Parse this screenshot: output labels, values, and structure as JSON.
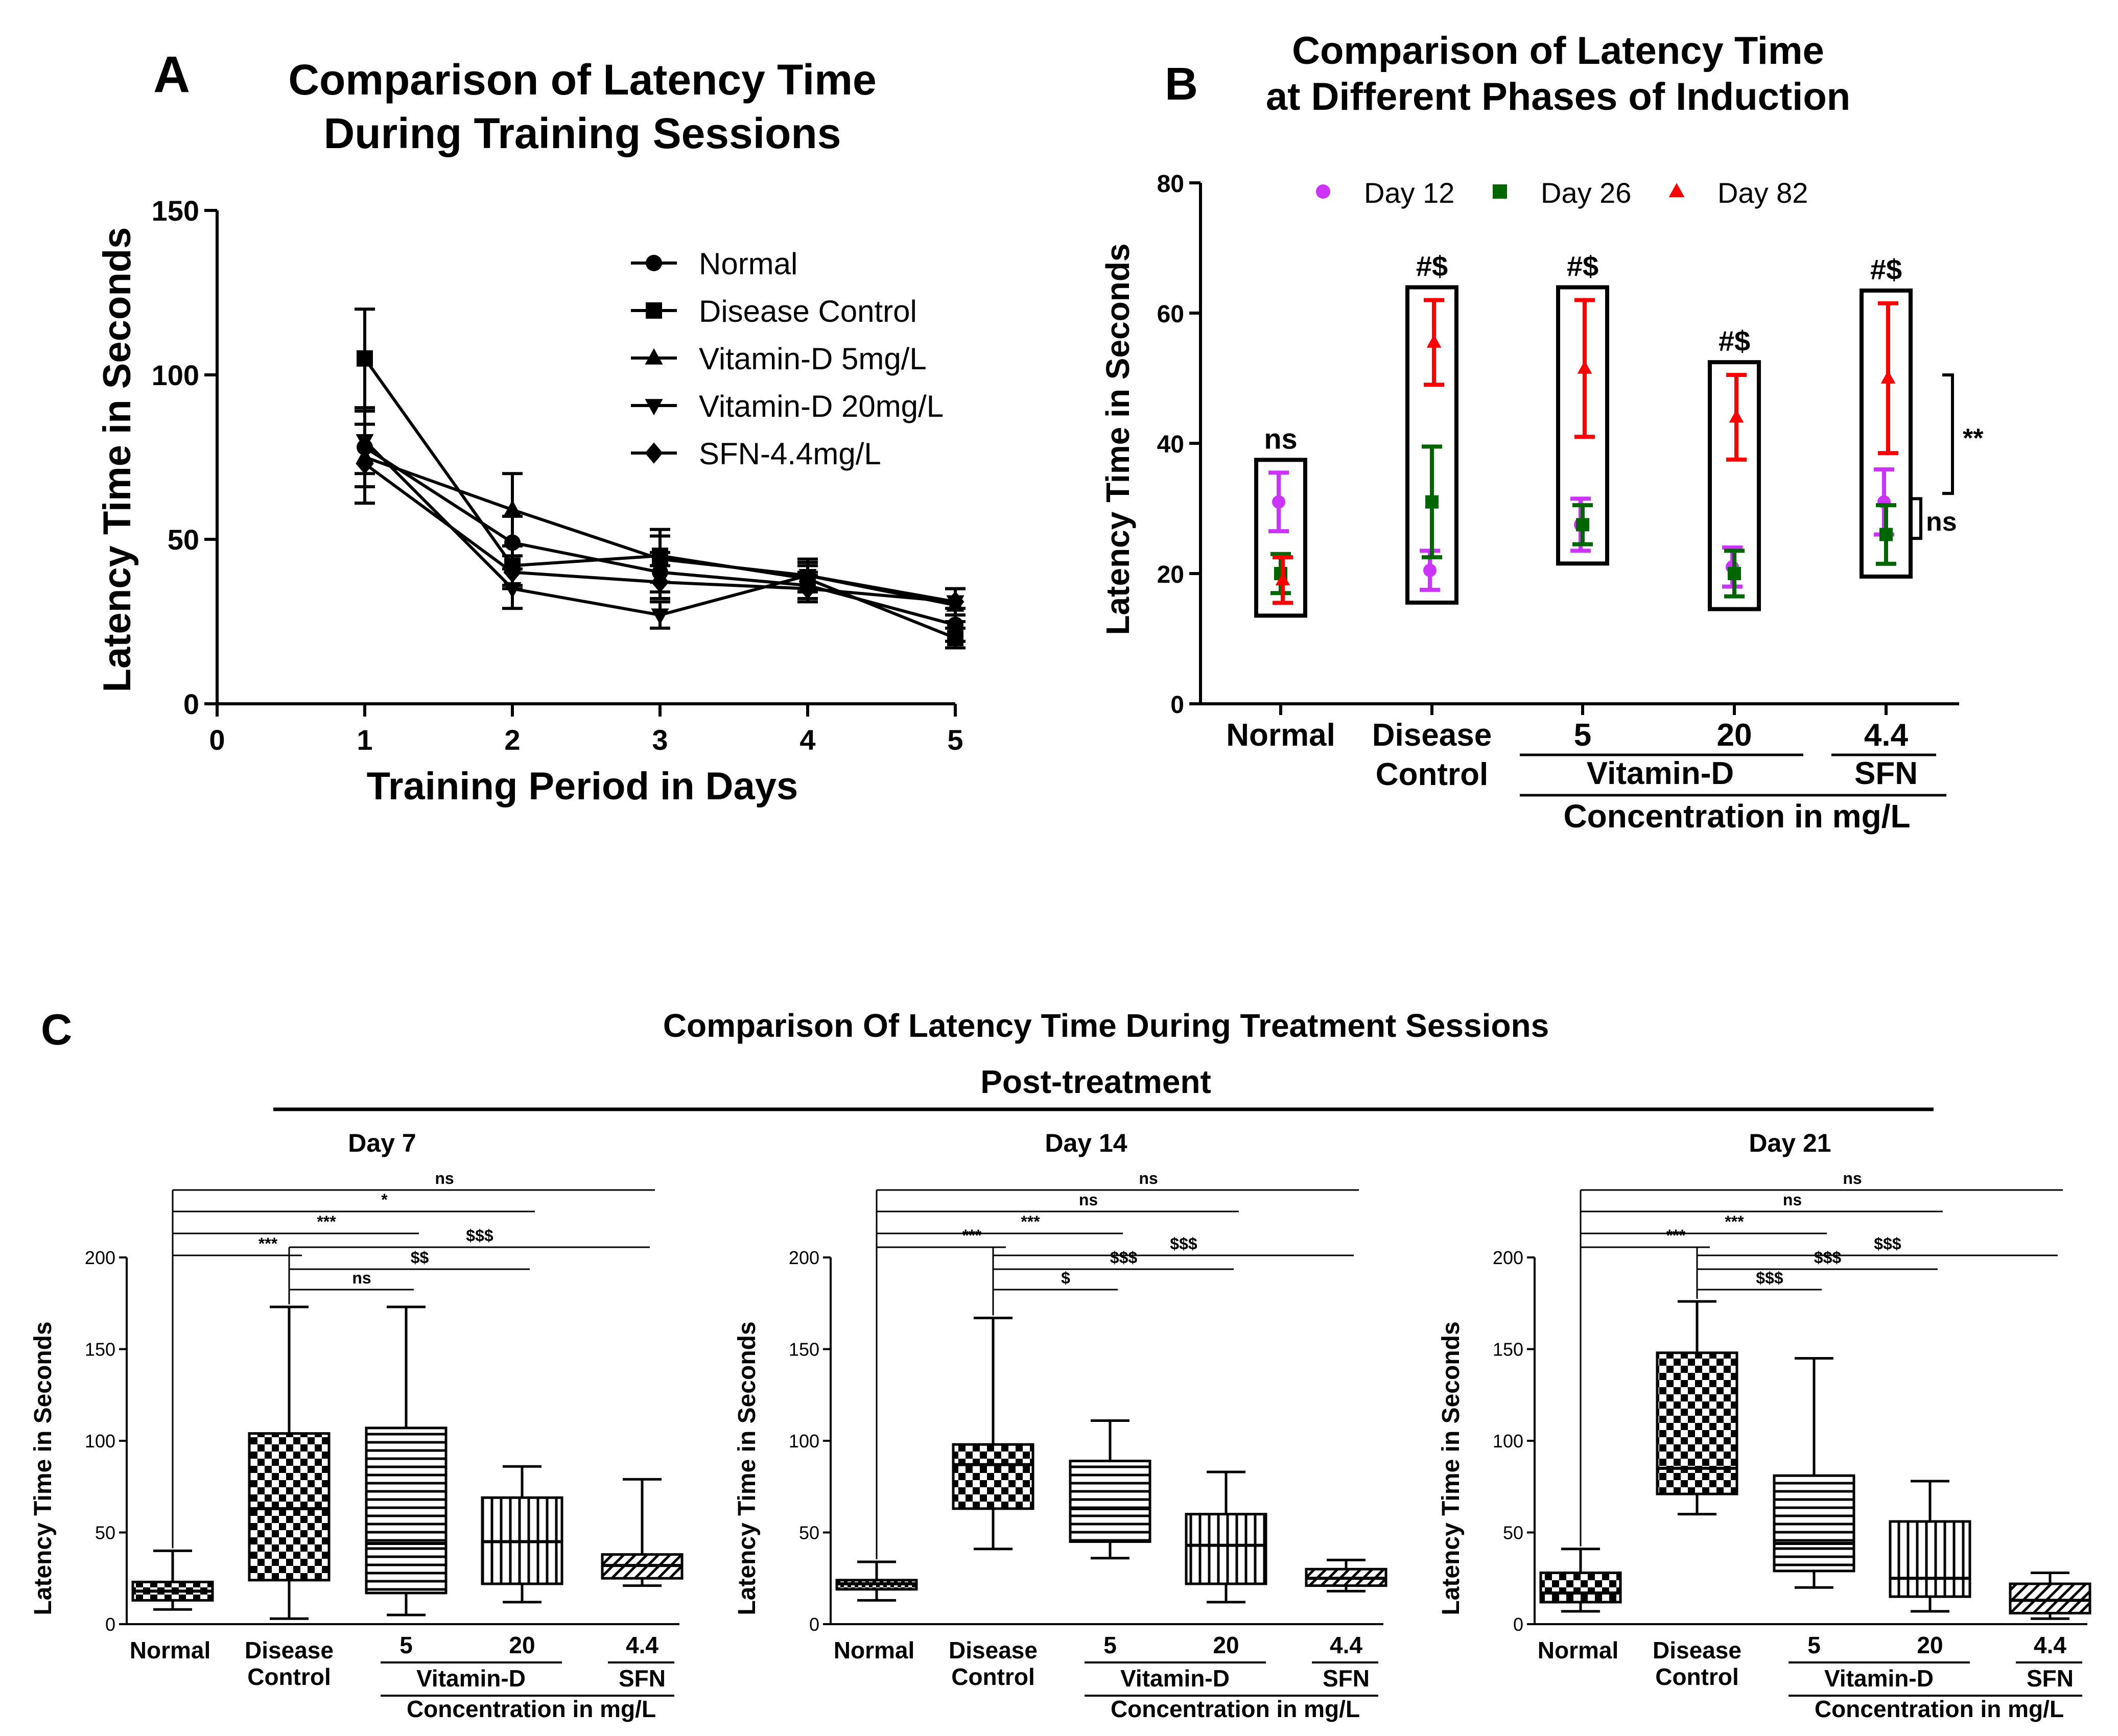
{
  "figure": {
    "panel_letters": {
      "A": "A",
      "B": "B",
      "C": "C"
    }
  },
  "chart_data": [
    {
      "panel": "A",
      "type": "line",
      "title": [
        "Comparison of Latency Time",
        "During Training Sessions"
      ],
      "xlabel": "Training Period in Days",
      "ylabel": "Latency Time in Seconds",
      "xlim": [
        0,
        5
      ],
      "ylim": [
        0,
        150
      ],
      "xticks": [
        0,
        1,
        2,
        3,
        4,
        5
      ],
      "yticks": [
        0,
        50,
        100,
        150
      ],
      "x": [
        1,
        2,
        3,
        4,
        5
      ],
      "legend_position": "top-right",
      "series": [
        {
          "name": "Normal",
          "marker": "circle",
          "values": [
            78,
            49,
            40,
            36,
            24
          ],
          "err": [
            12,
            8,
            6,
            4,
            5
          ]
        },
        {
          "name": "Disease Control",
          "marker": "square",
          "values": [
            105,
            42,
            45,
            38,
            20
          ],
          "err": [
            15,
            6,
            8,
            4,
            3
          ]
        },
        {
          "name": "Vitamin-D 5mg/L",
          "marker": "triangle-up",
          "values": [
            75,
            59,
            44,
            39,
            30
          ],
          "err": [
            14,
            11,
            7,
            5,
            5
          ]
        },
        {
          "name": "Vitamin-D 20mg/L",
          "marker": "triangle-down",
          "values": [
            80,
            35,
            27,
            39,
            31
          ],
          "err": [
            10,
            6,
            4,
            4,
            4
          ]
        },
        {
          "name": "SFN-4.4mg/L",
          "marker": "diamond",
          "values": [
            73,
            40,
            37,
            35,
            31
          ],
          "err": [
            12,
            5,
            5,
            4,
            4
          ]
        }
      ]
    },
    {
      "panel": "B",
      "type": "scatter",
      "title": [
        "Comparison of Latency Time",
        "at Different Phases of Induction"
      ],
      "ylabel": "Latency Time in Seconds",
      "xlabel": "Concentration in mg/L",
      "ylim": [
        0,
        80
      ],
      "yticks": [
        0,
        20,
        40,
        60,
        80
      ],
      "group_labels": [
        "Normal",
        "Disease\nControl",
        "5",
        "20",
        "4.4"
      ],
      "group_label_lines": [
        [
          "Normal"
        ],
        [
          "Disease",
          "Control"
        ],
        [
          "5"
        ],
        [
          "20"
        ],
        [
          "4.4"
        ]
      ],
      "subgroup_labels": {
        "vitamin": "Vitamin-D",
        "sfn": "SFN"
      },
      "legend_position": "top",
      "series": [
        {
          "name": "Day 12",
          "color": "#cc33ff",
          "marker": "circle",
          "values": [
            31,
            20.5,
            27.5,
            21,
            31
          ],
          "err": [
            4.5,
            3,
            4,
            3,
            5
          ]
        },
        {
          "name": "Day 26",
          "color": "#006600",
          "marker": "square",
          "values": [
            20,
            31,
            27.5,
            20,
            26
          ],
          "err": [
            3,
            8.5,
            3,
            3.5,
            4.5
          ]
        },
        {
          "name": "Day 82",
          "color": "#ff0000",
          "marker": "triangle-up",
          "values": [
            19,
            55.5,
            51.5,
            44,
            50
          ],
          "err": [
            3.5,
            6.5,
            10.5,
            6.5,
            11.5
          ]
        }
      ],
      "annotations": {
        "group_marks": [
          "ns",
          "#$",
          "#$",
          "#$",
          "#$"
        ],
        "bracket_upper": "**",
        "bracket_lower": "ns"
      }
    },
    {
      "panel": "C",
      "type": "box",
      "title": "Comparison Of Latency Time During Treatment Sessions",
      "subtitle": "Post-treatment",
      "ylabel": "Latency Time in Seconds",
      "xlabel": "Concentration in mg/L",
      "ylim": [
        0,
        200
      ],
      "yticks": [
        0,
        50,
        100,
        150,
        200
      ],
      "group_label_lines": [
        [
          "Normal"
        ],
        [
          "Disease",
          "Control"
        ],
        [
          "5"
        ],
        [
          "20"
        ],
        [
          "4.4"
        ]
      ],
      "subgroup_labels": {
        "vitamin": "Vitamin-D",
        "sfn": "SFN"
      },
      "subplots": [
        {
          "title": "Day 7",
          "boxes": [
            {
              "group": "Normal",
              "min": 8,
              "q1": 13,
              "median": 18,
              "q3": 23,
              "max": 40
            },
            {
              "group": "Disease Control",
              "min": 3,
              "q1": 24,
              "median": 63,
              "q3": 104,
              "max": 173
            },
            {
              "group": "Vitamin-D 5",
              "min": 5,
              "q1": 17,
              "median": 44,
              "q3": 107,
              "max": 173
            },
            {
              "group": "Vitamin-D 20",
              "min": 12,
              "q1": 22,
              "median": 45,
              "q3": 69,
              "max": 86
            },
            {
              "group": "SFN 4.4",
              "min": 21,
              "q1": 25,
              "median": 32,
              "q3": 38,
              "max": 79
            }
          ],
          "comparisons": [
            {
              "from": "Normal",
              "to": "SFN 4.4",
              "label": "ns"
            },
            {
              "from": "Normal",
              "to": "Vitamin-D 20",
              "label": "*"
            },
            {
              "from": "Normal",
              "to": "Vitamin-D 5",
              "label": "***"
            },
            {
              "from": "Disease Control",
              "to": "SFN 4.4",
              "label": "$$$"
            },
            {
              "from": "Normal",
              "to": "Disease Control",
              "label": "***"
            },
            {
              "from": "Disease Control",
              "to": "Vitamin-D 20",
              "label": "$$"
            },
            {
              "from": "Disease Control",
              "to": "Vitamin-D 5",
              "label": "ns"
            }
          ]
        },
        {
          "title": "Day 14",
          "boxes": [
            {
              "group": "Normal",
              "min": 13,
              "q1": 19,
              "median": 22,
              "q3": 24,
              "max": 34
            },
            {
              "group": "Disease Control",
              "min": 41,
              "q1": 63,
              "median": 87,
              "q3": 98,
              "max": 167
            },
            {
              "group": "Vitamin-D 5",
              "min": 36,
              "q1": 45,
              "median": 63,
              "q3": 89,
              "max": 111
            },
            {
              "group": "Vitamin-D 20",
              "min": 12,
              "q1": 22,
              "median": 43,
              "q3": 60,
              "max": 83
            },
            {
              "group": "SFN 4.4",
              "min": 18,
              "q1": 21,
              "median": 25,
              "q3": 30,
              "max": 35
            }
          ],
          "comparisons": [
            {
              "from": "Normal",
              "to": "SFN 4.4",
              "label": "ns"
            },
            {
              "from": "Normal",
              "to": "Vitamin-D 20",
              "label": "ns"
            },
            {
              "from": "Normal",
              "to": "Vitamin-D 5",
              "label": "***"
            },
            {
              "from": "Normal",
              "to": "Disease Control",
              "label": "***"
            },
            {
              "from": "Disease Control",
              "to": "SFN 4.4",
              "label": "$$$"
            },
            {
              "from": "Disease Control",
              "to": "Vitamin-D 20",
              "label": "$$$"
            },
            {
              "from": "Disease Control",
              "to": "Vitamin-D 5",
              "label": "$"
            }
          ]
        },
        {
          "title": "Day 21",
          "boxes": [
            {
              "group": "Normal",
              "min": 7,
              "q1": 12,
              "median": 17,
              "q3": 28,
              "max": 41
            },
            {
              "group": "Disease Control",
              "min": 60,
              "q1": 71,
              "median": 85,
              "q3": 148,
              "max": 176
            },
            {
              "group": "Vitamin-D 5",
              "min": 20,
              "q1": 29,
              "median": 44,
              "q3": 81,
              "max": 145
            },
            {
              "group": "Vitamin-D 20",
              "min": 7,
              "q1": 15,
              "median": 25,
              "q3": 56,
              "max": 78
            },
            {
              "group": "SFN 4.4",
              "min": 3,
              "q1": 6,
              "median": 13,
              "q3": 22,
              "max": 28
            }
          ],
          "comparisons": [
            {
              "from": "Normal",
              "to": "SFN 4.4",
              "label": "ns"
            },
            {
              "from": "Normal",
              "to": "Vitamin-D 20",
              "label": "ns"
            },
            {
              "from": "Normal",
              "to": "Vitamin-D 5",
              "label": "***"
            },
            {
              "from": "Normal",
              "to": "Disease Control",
              "label": "***"
            },
            {
              "from": "Disease Control",
              "to": "SFN 4.4",
              "label": "$$$"
            },
            {
              "from": "Disease Control",
              "to": "Vitamin-D 20",
              "label": "$$$"
            },
            {
              "from": "Disease Control",
              "to": "Vitamin-D 5",
              "label": "$$$"
            }
          ]
        }
      ]
    }
  ]
}
